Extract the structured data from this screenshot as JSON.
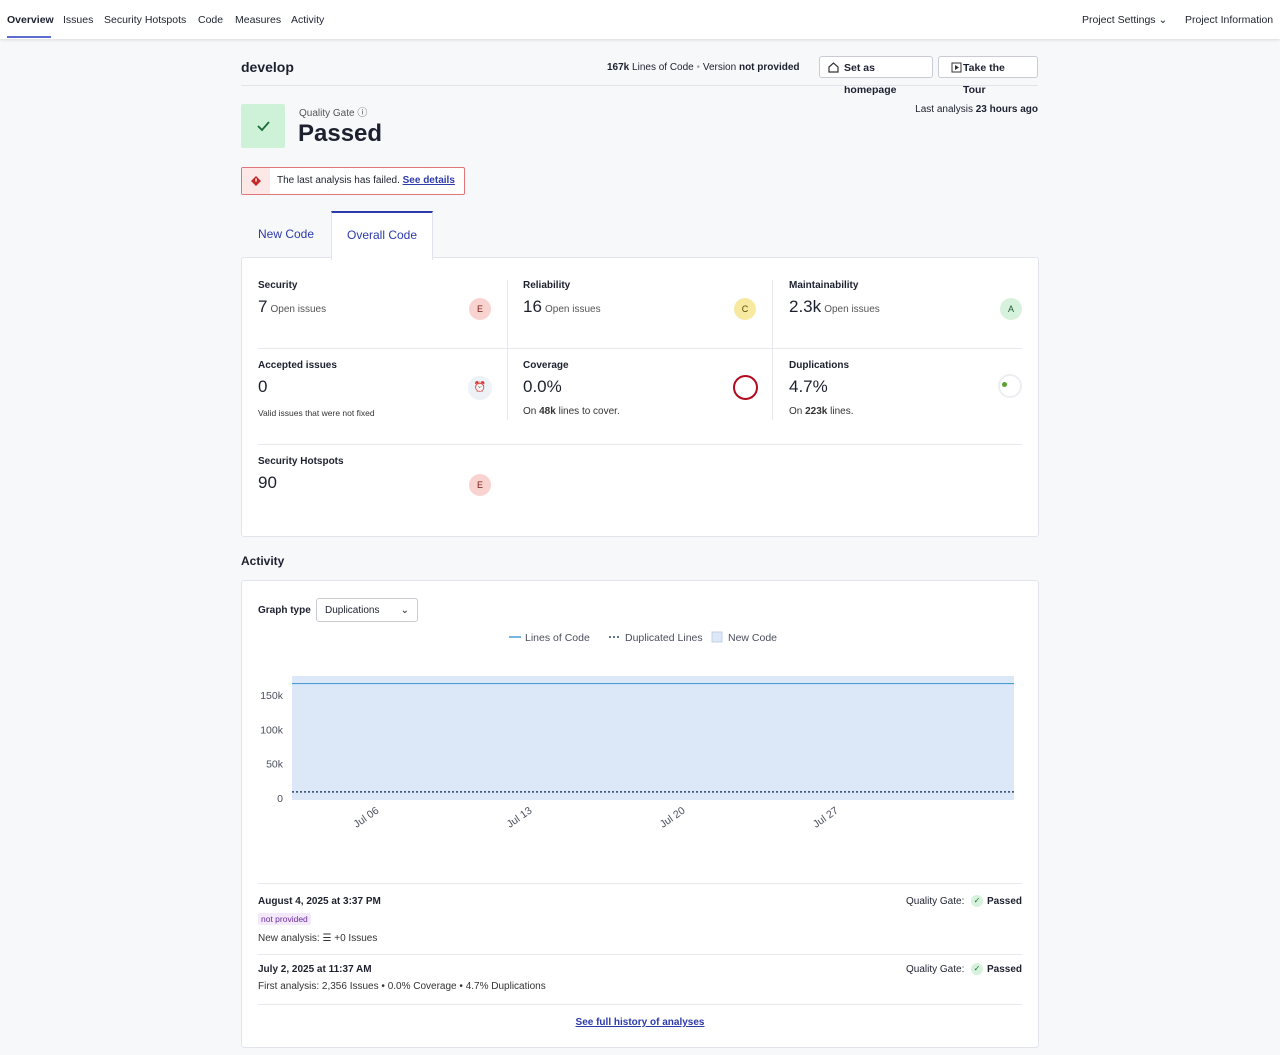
{
  "nav": {
    "items": [
      "Overview",
      "Issues",
      "Security Hotspots",
      "Code",
      "Measures",
      "Activity"
    ],
    "right": [
      "Project Settings",
      "Project Information"
    ]
  },
  "header": {
    "branch": "develop",
    "loc_value": "167k",
    "loc_label": "Lines of Code",
    "version_label": "Version",
    "version_value": "not provided",
    "buttons": [
      "Set as homepage",
      "Take the Tour"
    ]
  },
  "quality_gate": {
    "label": "Quality Gate",
    "status": "Passed",
    "last_analysis_label": "Last analysis",
    "last_analysis_value": "23 hours ago"
  },
  "alert": {
    "text": "The last analysis has failed.",
    "link": "See details"
  },
  "tabs": [
    "New Code",
    "Overall Code"
  ],
  "metrics": [
    {
      "title": "Security",
      "value": "7",
      "unit": "Open issues",
      "rating": "E"
    },
    {
      "title": "Reliability",
      "value": "16",
      "unit": "Open issues",
      "rating": "C"
    },
    {
      "title": "Maintainability",
      "value": "2.3k",
      "unit": "Open issues",
      "rating": "A"
    },
    {
      "title": "Accepted issues",
      "value": "0",
      "note": "Valid issues that were not fixed"
    },
    {
      "title": "Coverage",
      "value": "0.0%",
      "note_prefix": "On",
      "note_value": "48k",
      "note_suffix": "lines to cover."
    },
    {
      "title": "Duplications",
      "value": "4.7%",
      "note_prefix": "On",
      "note_value": "223k",
      "note_suffix": "lines."
    },
    {
      "title": "Security Hotspots",
      "value": "90",
      "rating": "E"
    }
  ],
  "activity": {
    "title": "Activity",
    "graph_type_label": "Graph type",
    "graph_type": "Duplications",
    "analyses": [
      {
        "date": "August 4, 2025 at 3:37 PM",
        "version": "not provided",
        "qg_label": "Quality Gate:",
        "qg_status": "Passed",
        "summary_label": "New analysis:",
        "summary": [
          "+0 Issues"
        ]
      },
      {
        "date": "July 2, 2025 at 11:37 AM",
        "qg_label": "Quality Gate:",
        "qg_status": "Passed",
        "summary_label": "First analysis:",
        "summary": [
          "2,356 Issues",
          "0.0% Coverage",
          "4.7% Duplications"
        ]
      }
    ],
    "history_link": "See full history of analyses"
  },
  "chart_data": {
    "type": "line",
    "x": [
      "2025-07-02",
      "2025-08-04"
    ],
    "series": [
      {
        "name": "Lines of Code",
        "color": "#4b9fd5",
        "style": "solid",
        "values": [
          167000,
          167000
        ]
      },
      {
        "name": "Duplicated Lines",
        "color": "#2c4a6b",
        "style": "dotted",
        "values": [
          9000,
          9000
        ]
      }
    ],
    "new_code": {
      "name": "New Code",
      "color": "#dce8f7",
      "period": [
        "2025-07-02",
        "2025-08-04"
      ]
    },
    "xlim": [
      "2025-07-02",
      "2025-08-04"
    ],
    "xticks": [
      {
        "value": "2025-07-06",
        "label": "Jul 06"
      },
      {
        "value": "2025-07-13",
        "label": "Jul 13"
      },
      {
        "value": "2025-07-20",
        "label": "Jul 20"
      },
      {
        "value": "2025-07-27",
        "label": "Jul 27"
      }
    ],
    "ylim": [
      0,
      178000
    ],
    "yticks": [
      0,
      {
        "value": 50000,
        "label": "50k"
      },
      {
        "value": 100000,
        "label": "100k"
      },
      {
        "value": 150000,
        "label": "150k"
      }
    ]
  }
}
